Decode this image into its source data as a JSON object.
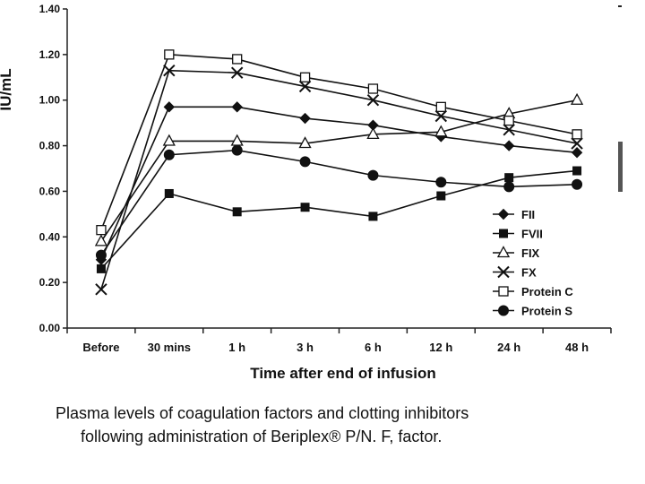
{
  "chart_data": {
    "type": "line",
    "title": "",
    "xlabel": "Time after end of infusion",
    "ylabel": "IU/mL",
    "categories": [
      "Before",
      "30 mins",
      "1 h",
      "3 h",
      "6 h",
      "12 h",
      "24 h",
      "48 h"
    ],
    "ylim": [
      0.0,
      1.4
    ],
    "yticks": [
      "0.00",
      "0.20",
      "0.40",
      "0.60",
      "0.80",
      "1.00",
      "1.20",
      "1.40"
    ],
    "grid": false,
    "legend_position": "bottom-right",
    "series": [
      {
        "name": "FII",
        "marker": "diamond",
        "values": [
          0.3,
          0.97,
          0.97,
          0.92,
          0.89,
          0.84,
          0.8,
          0.77
        ]
      },
      {
        "name": "FVII",
        "marker": "square-filled",
        "values": [
          0.26,
          0.59,
          0.51,
          0.53,
          0.49,
          0.58,
          0.66,
          0.69
        ]
      },
      {
        "name": "FIX",
        "marker": "triangle-open",
        "values": [
          0.38,
          0.82,
          0.82,
          0.81,
          0.85,
          0.86,
          0.94,
          1.0
        ]
      },
      {
        "name": "FX",
        "marker": "x",
        "values": [
          0.17,
          1.13,
          1.12,
          1.06,
          1.0,
          0.93,
          0.87,
          0.81
        ]
      },
      {
        "name": "Protein C",
        "marker": "square-open",
        "values": [
          0.43,
          1.2,
          1.18,
          1.1,
          1.05,
          0.97,
          0.91,
          0.85
        ]
      },
      {
        "name": "Protein S",
        "marker": "circle",
        "values": [
          0.32,
          0.76,
          0.78,
          0.73,
          0.67,
          0.64,
          0.62,
          0.63
        ]
      }
    ]
  },
  "caption": {
    "line1": "Plasma levels of coagulation factors and clotting inhibitors",
    "line2": "following administration of Beriplex® P/N. F, factor."
  }
}
